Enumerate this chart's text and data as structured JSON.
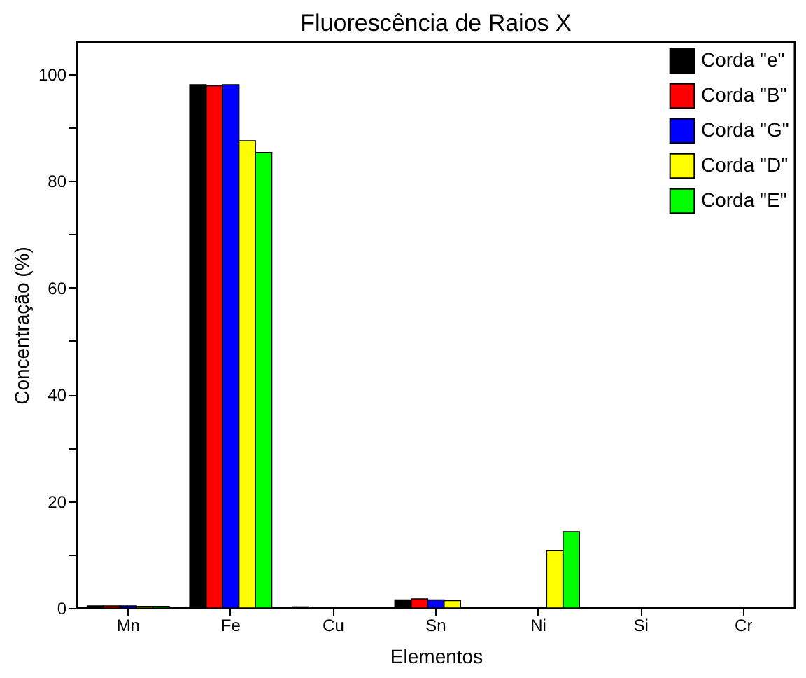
{
  "chart_data": {
    "type": "bar",
    "title": "Fluorescência de Raios X",
    "xlabel": "Elementos",
    "ylabel": "Concentração (%)",
    "categories": [
      "Mn",
      "Fe",
      "Cu",
      "Sn",
      "Ni",
      "Si",
      "Cr"
    ],
    "series": [
      {
        "name": "Corda \"e\"",
        "color": "#000000",
        "values": [
          0.4,
          98,
          0.2,
          1.5,
          null,
          null,
          null
        ]
      },
      {
        "name": "Corda \"B\"",
        "color": "#ff0000",
        "values": [
          0.4,
          97.8,
          null,
          1.7,
          null,
          null,
          null
        ]
      },
      {
        "name": "Corda \"G\"",
        "color": "#0000ff",
        "values": [
          0.4,
          98,
          null,
          1.5,
          null,
          null,
          null
        ]
      },
      {
        "name": "Corda \"D\"",
        "color": "#ffff00",
        "values": [
          0.3,
          87.5,
          null,
          1.4,
          10.8,
          null,
          null
        ]
      },
      {
        "name": "Corda \"E\"",
        "color": "#00ff00",
        "values": [
          0.3,
          85.3,
          null,
          null,
          14.3,
          null,
          null
        ]
      }
    ],
    "ylim": [
      0,
      106
    ],
    "yticks": [
      0,
      {
        "value": 10,
        "label": null
      },
      20,
      {
        "value": 30,
        "label": null
      },
      40,
      {
        "value": 50,
        "label": null
      },
      60,
      {
        "value": 70,
        "label": null
      },
      80,
      {
        "value": 90,
        "label": null
      },
      100
    ],
    "legend": "top right",
    "grid": false
  }
}
